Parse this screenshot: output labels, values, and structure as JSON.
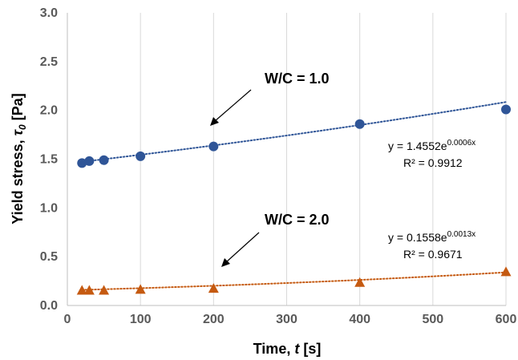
{
  "chart_data": {
    "type": "scatter",
    "xlabel_main": "Time, ",
    "xlabel_var": "t",
    "xlabel_unit": " [s]",
    "ylabel_main": "Yield stress, ",
    "ylabel_var": "τ",
    "ylabel_sub": "0",
    "ylabel_unit": " [Pa]",
    "xlim": [
      0,
      600
    ],
    "ylim": [
      0,
      3.0
    ],
    "xticks": [
      "0",
      "100",
      "200",
      "300",
      "400",
      "500",
      "600"
    ],
    "yticks": [
      "0.0",
      "0.5",
      "1.0",
      "1.5",
      "2.0",
      "2.5",
      "3.0"
    ],
    "grid": "vertical",
    "series": [
      {
        "name": "W/C = 1.0",
        "marker": "circle",
        "color": "#2F5597",
        "x": [
          20,
          30,
          50,
          100,
          200,
          400,
          600
        ],
        "y": [
          1.46,
          1.48,
          1.49,
          1.53,
          1.63,
          1.86,
          2.01
        ],
        "trend": {
          "type": "exponential",
          "a": 1.4552,
          "b": 0.0006,
          "x_range": [
            20,
            600
          ]
        },
        "equation_base": "y = 1.4552e",
        "equation_exp": "0.0006x",
        "r2": "R² = 0.9912"
      },
      {
        "name": "W/C = 2.0",
        "marker": "triangle",
        "color": "#C55A11",
        "x": [
          20,
          30,
          50,
          100,
          200,
          400,
          600
        ],
        "y": [
          0.16,
          0.16,
          0.16,
          0.17,
          0.18,
          0.24,
          0.35
        ],
        "trend": {
          "type": "exponential",
          "a": 0.1558,
          "b": 0.0013,
          "x_range": [
            20,
            600
          ]
        },
        "equation_base": "y = 0.1558e",
        "equation_exp": "0.0013x",
        "r2": "R² = 0.9671"
      }
    ]
  }
}
